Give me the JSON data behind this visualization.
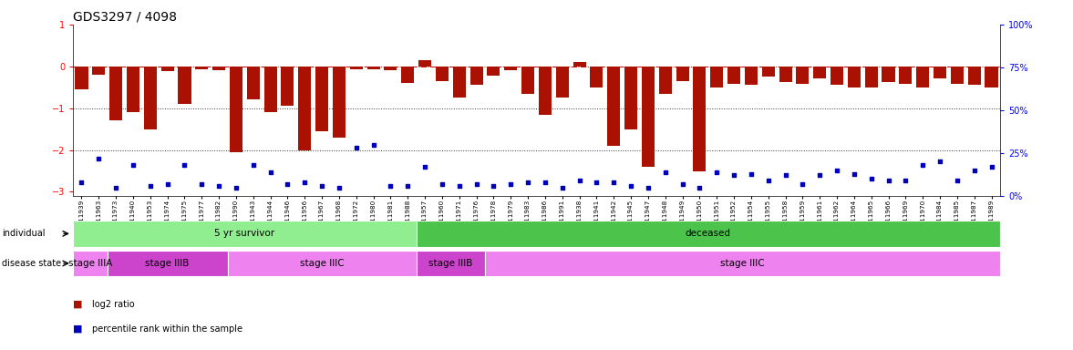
{
  "title": "GDS3297 / 4098",
  "samples": [
    "GSM311939",
    "GSM311963",
    "GSM311973",
    "GSM311940",
    "GSM311953",
    "GSM311974",
    "GSM311975",
    "GSM311977",
    "GSM311982",
    "GSM311990",
    "GSM311943",
    "GSM311944",
    "GSM311946",
    "GSM311956",
    "GSM311967",
    "GSM311968",
    "GSM311972",
    "GSM311980",
    "GSM311981",
    "GSM311988",
    "GSM311957",
    "GSM311960",
    "GSM311971",
    "GSM311976",
    "GSM311978",
    "GSM311979",
    "GSM311983",
    "GSM311986",
    "GSM311991",
    "GSM311938",
    "GSM311941",
    "GSM311942",
    "GSM311945",
    "GSM311947",
    "GSM311948",
    "GSM311949",
    "GSM311950",
    "GSM311951",
    "GSM311952",
    "GSM311954",
    "GSM311955",
    "GSM311958",
    "GSM311959",
    "GSM311961",
    "GSM311962",
    "GSM311964",
    "GSM311965",
    "GSM311966",
    "GSM311969",
    "GSM311970",
    "GSM311984",
    "GSM311985",
    "GSM311987",
    "GSM311989"
  ],
  "log2_ratio": [
    -0.55,
    -0.2,
    -1.3,
    -1.1,
    -1.5,
    -0.12,
    -0.9,
    -0.07,
    -0.1,
    -2.05,
    -0.8,
    -1.1,
    -0.95,
    -2.0,
    -1.55,
    -1.7,
    -0.08,
    -0.07,
    -0.1,
    -0.4,
    0.15,
    -0.35,
    -0.75,
    -0.45,
    -0.22,
    -0.1,
    -0.65,
    -1.15,
    -0.75,
    0.1,
    -0.5,
    -1.9,
    -1.5,
    -2.4,
    -0.65,
    -0.35,
    -2.5,
    -0.5,
    -0.42,
    -0.45,
    -0.25,
    -0.38,
    -0.42,
    -0.28,
    -0.45,
    -0.5,
    -0.5,
    -0.38,
    -0.42,
    -0.5,
    -0.28,
    -0.42,
    -0.45,
    -0.5
  ],
  "percentile": [
    8,
    22,
    5,
    18,
    6,
    7,
    18,
    7,
    6,
    5,
    18,
    14,
    7,
    8,
    6,
    5,
    28,
    30,
    6,
    6,
    17,
    7,
    6,
    7,
    6,
    7,
    8,
    8,
    5,
    9,
    8,
    8,
    6,
    5,
    14,
    7,
    5,
    14,
    12,
    13,
    9,
    12,
    7,
    12,
    15,
    13,
    10,
    9,
    9,
    18,
    20,
    9,
    15,
    17
  ],
  "individual_groups": [
    {
      "label": "5 yr survivor",
      "start": 0,
      "end": 20,
      "color": "#90EE90"
    },
    {
      "label": "deceased",
      "start": 20,
      "end": 54,
      "color": "#4CC44C"
    }
  ],
  "disease_groups": [
    {
      "label": "stage IIIA",
      "start": 0,
      "end": 2,
      "color": "#EE82EE"
    },
    {
      "label": "stage IIIB",
      "start": 2,
      "end": 9,
      "color": "#CC55CC"
    },
    {
      "label": "stage IIIC",
      "start": 9,
      "end": 20,
      "color": "#EE82EE"
    },
    {
      "label": "stage IIIB",
      "start": 20,
      "end": 24,
      "color": "#CC55CC"
    },
    {
      "label": "stage IIIC",
      "start": 24,
      "end": 54,
      "color": "#EE82EE"
    }
  ],
  "bar_color": "#AA1100",
  "dot_color": "#0000BB",
  "ylim_left": [
    -3.1,
    1.0
  ],
  "ylim_right": [
    0,
    100
  ],
  "yticks_left": [
    1,
    0,
    -1,
    -2,
    -3
  ],
  "yticks_right": [
    0,
    25,
    50,
    75,
    100
  ],
  "title_fontsize": 10,
  "tick_fontsize": 5.5,
  "label_fontsize": 7
}
